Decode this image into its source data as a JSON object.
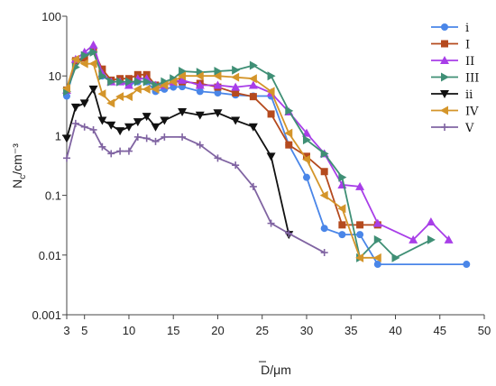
{
  "chart_data": {
    "type": "line",
    "title": "",
    "xlabel": "D/μm",
    "ylabel": "Nc/cm⁻³",
    "x_scale": "linear",
    "y_scale": "log",
    "xlim": [
      3,
      50
    ],
    "ylim": [
      0.001,
      100
    ],
    "x_ticks": [
      3,
      5,
      10,
      15,
      20,
      25,
      30,
      35,
      40,
      45,
      50
    ],
    "y_ticks": [
      0.001,
      0.01,
      0.1,
      1,
      10,
      100
    ],
    "y_tick_labels": [
      "0.001",
      "0.01",
      "0.1",
      "1",
      "10",
      "100"
    ],
    "grid": false,
    "legend_position": "top-right",
    "series": [
      {
        "name": "i",
        "color": "#4a86e8",
        "marker": "circle",
        "points": [
          [
            3,
            4.6
          ],
          [
            4,
            17
          ],
          [
            5,
            22
          ],
          [
            6,
            28
          ],
          [
            7,
            10
          ],
          [
            8,
            8
          ],
          [
            9,
            8
          ],
          [
            10,
            7
          ],
          [
            11,
            8
          ],
          [
            12,
            8
          ],
          [
            13,
            5.5
          ],
          [
            14,
            6
          ],
          [
            15,
            6.5
          ],
          [
            16,
            6.6
          ],
          [
            18,
            5.5
          ],
          [
            20,
            5.2
          ],
          [
            22,
            4.8
          ],
          [
            24,
            4.6
          ],
          [
            26,
            4.6
          ],
          [
            28,
            0.7
          ],
          [
            30,
            0.2
          ],
          [
            32,
            0.028
          ],
          [
            34,
            0.022
          ],
          [
            36,
            0.022
          ],
          [
            38,
            0.007
          ],
          [
            48,
            0.007
          ]
        ]
      },
      {
        "name": "I",
        "color": "#b54a1e",
        "marker": "square",
        "points": [
          [
            3,
            5.8
          ],
          [
            4,
            18
          ],
          [
            5,
            20
          ],
          [
            6,
            27
          ],
          [
            7,
            13
          ],
          [
            8,
            8.5
          ],
          [
            9,
            9
          ],
          [
            10,
            9
          ],
          [
            11,
            10.5
          ],
          [
            12,
            10.5
          ],
          [
            13,
            7
          ],
          [
            14,
            7
          ],
          [
            15,
            8
          ],
          [
            16,
            8
          ],
          [
            18,
            7.5
          ],
          [
            20,
            6.5
          ],
          [
            22,
            5.2
          ],
          [
            24,
            4.5
          ],
          [
            26,
            2.3
          ],
          [
            28,
            0.7
          ],
          [
            30,
            0.45
          ],
          [
            32,
            0.25
          ],
          [
            34,
            0.032
          ],
          [
            36,
            0.032
          ],
          [
            38,
            0.032
          ]
        ]
      },
      {
        "name": "II",
        "color": "#a83ee8",
        "marker": "triangle-up",
        "points": [
          [
            3,
            5.8
          ],
          [
            4,
            19
          ],
          [
            5,
            25
          ],
          [
            6,
            33
          ],
          [
            7,
            11
          ],
          [
            8,
            8
          ],
          [
            9,
            8
          ],
          [
            10,
            7
          ],
          [
            11,
            9
          ],
          [
            12,
            9
          ],
          [
            13,
            7
          ],
          [
            14,
            7
          ],
          [
            15,
            8
          ],
          [
            16,
            8.5
          ],
          [
            18,
            7
          ],
          [
            20,
            7
          ],
          [
            22,
            6.5
          ],
          [
            24,
            7
          ],
          [
            26,
            5.2
          ],
          [
            28,
            2.5
          ],
          [
            30,
            1.1
          ],
          [
            32,
            0.5
          ],
          [
            34,
            0.15
          ],
          [
            36,
            0.14
          ],
          [
            38,
            0.034
          ],
          [
            42,
            0.018
          ],
          [
            44,
            0.036
          ],
          [
            46,
            0.018
          ]
        ]
      },
      {
        "name": "III",
        "color": "#3f8f75",
        "marker": "triangle-right",
        "points": [
          [
            3,
            5.5
          ],
          [
            4,
            14
          ],
          [
            5,
            22
          ],
          [
            6,
            25
          ],
          [
            7,
            10
          ],
          [
            8,
            8
          ],
          [
            9,
            8
          ],
          [
            10,
            8
          ],
          [
            11,
            8
          ],
          [
            12,
            8
          ],
          [
            13,
            7
          ],
          [
            14,
            8
          ],
          [
            15,
            9
          ],
          [
            16,
            12
          ],
          [
            18,
            11.5
          ],
          [
            20,
            12
          ],
          [
            22,
            12.5
          ],
          [
            24,
            15
          ],
          [
            26,
            10
          ],
          [
            28,
            2.6
          ],
          [
            30,
            0.85
          ],
          [
            32,
            0.5
          ],
          [
            34,
            0.2
          ],
          [
            36,
            0.009
          ],
          [
            38,
            0.018
          ],
          [
            40,
            0.009
          ],
          [
            44,
            0.018
          ]
        ]
      },
      {
        "name": "ii",
        "color": "#111111",
        "marker": "triangle-down",
        "points": [
          [
            3,
            0.9
          ],
          [
            4,
            3
          ],
          [
            5,
            3.5
          ],
          [
            6,
            6
          ],
          [
            7,
            1.8
          ],
          [
            8,
            1.5
          ],
          [
            9,
            1.2
          ],
          [
            10,
            1.4
          ],
          [
            11,
            1.7
          ],
          [
            12,
            2.1
          ],
          [
            13,
            1.4
          ],
          [
            14,
            1.8
          ],
          [
            16,
            2.5
          ],
          [
            18,
            2.2
          ],
          [
            20,
            2.4
          ],
          [
            22,
            1.8
          ],
          [
            24,
            1.4
          ],
          [
            26,
            0.45
          ],
          [
            28,
            0.022
          ]
        ]
      },
      {
        "name": "IV",
        "color": "#d4952a",
        "marker": "triangle-left",
        "points": [
          [
            3,
            6.2
          ],
          [
            4,
            19
          ],
          [
            5,
            16
          ],
          [
            6,
            16
          ],
          [
            7,
            5
          ],
          [
            8,
            3.5
          ],
          [
            9,
            4.5
          ],
          [
            10,
            4.5
          ],
          [
            11,
            6
          ],
          [
            12,
            6
          ],
          [
            13,
            6
          ],
          [
            14,
            7
          ],
          [
            15,
            8
          ],
          [
            16,
            10
          ],
          [
            18,
            10
          ],
          [
            20,
            10
          ],
          [
            22,
            9.5
          ],
          [
            24,
            9
          ],
          [
            26,
            5.5
          ],
          [
            28,
            1.1
          ],
          [
            30,
            0.4
          ],
          [
            32,
            0.1
          ],
          [
            34,
            0.06
          ],
          [
            36,
            0.009
          ],
          [
            38,
            0.009
          ]
        ]
      },
      {
        "name": "V",
        "color": "#8064a2",
        "marker": "plus",
        "points": [
          [
            3,
            0.42
          ],
          [
            4,
            1.6
          ],
          [
            5,
            1.4
          ],
          [
            6,
            1.25
          ],
          [
            7,
            0.65
          ],
          [
            8,
            0.5
          ],
          [
            9,
            0.55
          ],
          [
            10,
            0.55
          ],
          [
            11,
            0.95
          ],
          [
            12,
            0.9
          ],
          [
            13,
            0.8
          ],
          [
            14,
            0.95
          ],
          [
            16,
            0.95
          ],
          [
            18,
            0.7
          ],
          [
            20,
            0.42
          ],
          [
            22,
            0.32
          ],
          [
            24,
            0.14
          ],
          [
            26,
            0.034
          ],
          [
            28,
            0.023
          ],
          [
            32,
            0.011
          ]
        ]
      }
    ]
  }
}
